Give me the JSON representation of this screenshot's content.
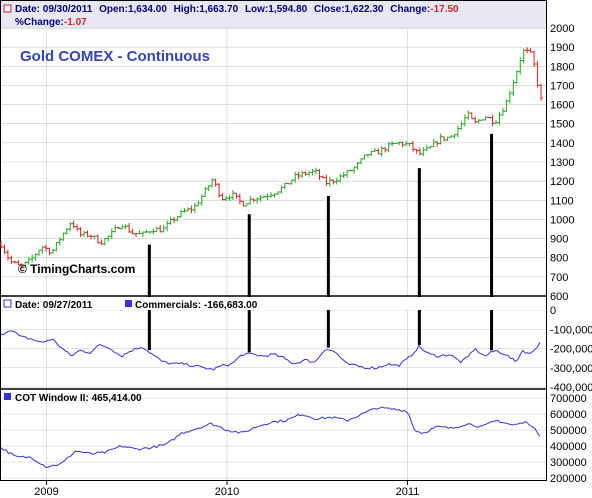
{
  "header": {
    "date_label": "Date: 09/30/2011",
    "open_label": "Open:",
    "open_value": "1,634.00",
    "high_label": "High:",
    "high_value": "1,663.70",
    "low_label": "Low:",
    "low_value": "1,594.80",
    "close_label": "Close:",
    "close_value": "1,622.30",
    "change_label": "Change:",
    "change_value": "-17.50",
    "pct_change_label": "%Change:",
    "pct_change_value": "-1.07"
  },
  "colors": {
    "price_up": "#22aa22",
    "price_down": "#dd2222",
    "series_blue": "#3333dd",
    "title_blue": "#3344bb",
    "grid": "#c8c8c8",
    "header_bg": "#e8e8f4",
    "header_text": "#000080",
    "marker_line": "#000000"
  },
  "chart_data": [
    {
      "panel": "price",
      "type": "bar",
      "title": "Gold COMEX - Continuous",
      "watermark": "© TimingCharts.com",
      "ylim": [
        600,
        2000
      ],
      "yticks": [
        600,
        700,
        800,
        900,
        1000,
        1100,
        1200,
        1300,
        1400,
        1500,
        1600,
        1700,
        1800,
        1900,
        2000
      ],
      "grid": true,
      "x_anchors": [
        {
          "date": "2008-10-01",
          "close": 870
        },
        {
          "date": "2008-10-20",
          "close": 780
        },
        {
          "date": "2008-11-10",
          "close": 750
        },
        {
          "date": "2008-12-01",
          "close": 790
        },
        {
          "date": "2008-12-22",
          "close": 860
        },
        {
          "date": "2009-01-12",
          "close": 830
        },
        {
          "date": "2009-02-02",
          "close": 920
        },
        {
          "date": "2009-02-20",
          "close": 990
        },
        {
          "date": "2009-03-09",
          "close": 920
        },
        {
          "date": "2009-03-30",
          "close": 920
        },
        {
          "date": "2009-04-20",
          "close": 880
        },
        {
          "date": "2009-05-11",
          "close": 920
        },
        {
          "date": "2009-06-01",
          "close": 980
        },
        {
          "date": "2009-06-22",
          "close": 930
        },
        {
          "date": "2009-07-13",
          "close": 920
        },
        {
          "date": "2009-08-03",
          "close": 950
        },
        {
          "date": "2009-08-24",
          "close": 945
        },
        {
          "date": "2009-09-14",
          "close": 1000
        },
        {
          "date": "2009-10-05",
          "close": 1040
        },
        {
          "date": "2009-10-26",
          "close": 1060
        },
        {
          "date": "2009-11-16",
          "close": 1140
        },
        {
          "date": "2009-12-03",
          "close": 1210
        },
        {
          "date": "2009-12-21",
          "close": 1110
        },
        {
          "date": "2010-01-11",
          "close": 1130
        },
        {
          "date": "2010-02-01",
          "close": 1080
        },
        {
          "date": "2010-02-22",
          "close": 1110
        },
        {
          "date": "2010-03-15",
          "close": 1120
        },
        {
          "date": "2010-04-05",
          "close": 1140
        },
        {
          "date": "2010-04-26",
          "close": 1170
        },
        {
          "date": "2010-05-17",
          "close": 1220
        },
        {
          "date": "2010-06-07",
          "close": 1240
        },
        {
          "date": "2010-06-28",
          "close": 1250
        },
        {
          "date": "2010-07-19",
          "close": 1190
        },
        {
          "date": "2010-08-09",
          "close": 1210
        },
        {
          "date": "2010-08-30",
          "close": 1240
        },
        {
          "date": "2010-09-20",
          "close": 1280
        },
        {
          "date": "2010-10-11",
          "close": 1340
        },
        {
          "date": "2010-11-01",
          "close": 1350
        },
        {
          "date": "2010-11-22",
          "close": 1380
        },
        {
          "date": "2010-12-13",
          "close": 1400
        },
        {
          "date": "2011-01-03",
          "close": 1390
        },
        {
          "date": "2011-01-24",
          "close": 1340
        },
        {
          "date": "2011-02-14",
          "close": 1370
        },
        {
          "date": "2011-03-07",
          "close": 1420
        },
        {
          "date": "2011-03-28",
          "close": 1430
        },
        {
          "date": "2011-04-18",
          "close": 1490
        },
        {
          "date": "2011-05-02",
          "close": 1550
        },
        {
          "date": "2011-05-16",
          "close": 1500
        },
        {
          "date": "2011-06-06",
          "close": 1540
        },
        {
          "date": "2011-06-27",
          "close": 1510
        },
        {
          "date": "2011-07-18",
          "close": 1600
        },
        {
          "date": "2011-08-08",
          "close": 1760
        },
        {
          "date": "2011-08-22",
          "close": 1880
        },
        {
          "date": "2011-09-06",
          "close": 1870
        },
        {
          "date": "2011-09-16",
          "close": 1790
        },
        {
          "date": "2011-09-26",
          "close": 1630
        },
        {
          "date": "2011-09-30",
          "close": 1622.3
        }
      ]
    },
    {
      "panel": "commercials",
      "type": "line",
      "legend": "Date: 09/27/2011",
      "series": [
        {
          "name": "Commercials: -166,683.00"
        }
      ],
      "ylim": [
        -400000,
        0
      ],
      "yticks": [
        0,
        -100000,
        -200000,
        -300000,
        -400000
      ],
      "ytick_labels": [
        "0",
        "-100,000",
        "-200,000",
        "-300,000",
        "-400,000"
      ],
      "grid": true,
      "x_anchors": [
        {
          "date": "2008-10-01",
          "value": -130000
        },
        {
          "date": "2008-10-20",
          "value": -100000
        },
        {
          "date": "2008-11-10",
          "value": -140000
        },
        {
          "date": "2008-12-01",
          "value": -150000
        },
        {
          "date": "2008-12-22",
          "value": -170000
        },
        {
          "date": "2009-01-12",
          "value": -150000
        },
        {
          "date": "2009-02-02",
          "value": -200000
        },
        {
          "date": "2009-02-20",
          "value": -240000
        },
        {
          "date": "2009-03-09",
          "value": -210000
        },
        {
          "date": "2009-03-30",
          "value": -220000
        },
        {
          "date": "2009-04-20",
          "value": -180000
        },
        {
          "date": "2009-05-11",
          "value": -200000
        },
        {
          "date": "2009-06-01",
          "value": -240000
        },
        {
          "date": "2009-06-22",
          "value": -210000
        },
        {
          "date": "2009-07-13",
          "value": -190000
        },
        {
          "date": "2009-08-03",
          "value": -230000
        },
        {
          "date": "2009-08-24",
          "value": -270000
        },
        {
          "date": "2009-09-14",
          "value": -280000
        },
        {
          "date": "2009-10-05",
          "value": -280000
        },
        {
          "date": "2009-10-26",
          "value": -290000
        },
        {
          "date": "2009-11-16",
          "value": -300000
        },
        {
          "date": "2009-12-03",
          "value": -310000
        },
        {
          "date": "2009-12-21",
          "value": -290000
        },
        {
          "date": "2010-01-11",
          "value": -280000
        },
        {
          "date": "2010-02-01",
          "value": -230000
        },
        {
          "date": "2010-02-22",
          "value": -230000
        },
        {
          "date": "2010-03-15",
          "value": -240000
        },
        {
          "date": "2010-04-05",
          "value": -230000
        },
        {
          "date": "2010-04-26",
          "value": -250000
        },
        {
          "date": "2010-05-17",
          "value": -280000
        },
        {
          "date": "2010-06-07",
          "value": -260000
        },
        {
          "date": "2010-06-28",
          "value": -270000
        },
        {
          "date": "2010-07-19",
          "value": -200000
        },
        {
          "date": "2010-08-09",
          "value": -220000
        },
        {
          "date": "2010-08-30",
          "value": -280000
        },
        {
          "date": "2010-09-20",
          "value": -290000
        },
        {
          "date": "2010-10-11",
          "value": -300000
        },
        {
          "date": "2010-11-01",
          "value": -300000
        },
        {
          "date": "2010-11-22",
          "value": -280000
        },
        {
          "date": "2010-12-13",
          "value": -290000
        },
        {
          "date": "2011-01-03",
          "value": -250000
        },
        {
          "date": "2011-01-24",
          "value": -190000
        },
        {
          "date": "2011-02-14",
          "value": -230000
        },
        {
          "date": "2011-03-07",
          "value": -240000
        },
        {
          "date": "2011-03-28",
          "value": -230000
        },
        {
          "date": "2011-04-18",
          "value": -270000
        },
        {
          "date": "2011-05-02",
          "value": -250000
        },
        {
          "date": "2011-05-16",
          "value": -200000
        },
        {
          "date": "2011-06-06",
          "value": -240000
        },
        {
          "date": "2011-06-27",
          "value": -210000
        },
        {
          "date": "2011-07-18",
          "value": -230000
        },
        {
          "date": "2011-08-08",
          "value": -270000
        },
        {
          "date": "2011-08-22",
          "value": -210000
        },
        {
          "date": "2011-09-06",
          "value": -230000
        },
        {
          "date": "2011-09-16",
          "value": -200000
        },
        {
          "date": "2011-09-27",
          "value": -166683
        }
      ]
    },
    {
      "panel": "cot_window",
      "type": "line",
      "series": [
        {
          "name": "COT Window II: 465,414.00"
        }
      ],
      "ylim": [
        200000,
        700000
      ],
      "yticks": [
        200000,
        300000,
        400000,
        500000,
        600000,
        700000
      ],
      "ytick_labels": [
        "200000",
        "300000",
        "400000",
        "500000",
        "600000",
        "700000"
      ],
      "grid": true,
      "x_anchors": [
        {
          "date": "2008-10-01",
          "value": 390000
        },
        {
          "date": "2008-11-01",
          "value": 330000
        },
        {
          "date": "2008-12-01",
          "value": 330000
        },
        {
          "date": "2009-01-01",
          "value": 270000
        },
        {
          "date": "2009-02-01",
          "value": 290000
        },
        {
          "date": "2009-03-01",
          "value": 370000
        },
        {
          "date": "2009-04-01",
          "value": 350000
        },
        {
          "date": "2009-05-01",
          "value": 360000
        },
        {
          "date": "2009-06-01",
          "value": 400000
        },
        {
          "date": "2009-07-01",
          "value": 380000
        },
        {
          "date": "2009-08-01",
          "value": 390000
        },
        {
          "date": "2009-09-01",
          "value": 410000
        },
        {
          "date": "2009-10-01",
          "value": 480000
        },
        {
          "date": "2009-11-01",
          "value": 510000
        },
        {
          "date": "2009-12-01",
          "value": 540000
        },
        {
          "date": "2010-01-01",
          "value": 500000
        },
        {
          "date": "2010-02-01",
          "value": 480000
        },
        {
          "date": "2010-03-01",
          "value": 520000
        },
        {
          "date": "2010-04-01",
          "value": 550000
        },
        {
          "date": "2010-05-01",
          "value": 560000
        },
        {
          "date": "2010-06-01",
          "value": 600000
        },
        {
          "date": "2010-07-01",
          "value": 570000
        },
        {
          "date": "2010-08-01",
          "value": 580000
        },
        {
          "date": "2010-09-01",
          "value": 560000
        },
        {
          "date": "2010-10-01",
          "value": 600000
        },
        {
          "date": "2010-11-01",
          "value": 640000
        },
        {
          "date": "2010-12-01",
          "value": 630000
        },
        {
          "date": "2011-01-01",
          "value": 620000
        },
        {
          "date": "2011-01-15",
          "value": 500000
        },
        {
          "date": "2011-02-01",
          "value": 480000
        },
        {
          "date": "2011-03-01",
          "value": 520000
        },
        {
          "date": "2011-04-01",
          "value": 510000
        },
        {
          "date": "2011-05-01",
          "value": 540000
        },
        {
          "date": "2011-06-01",
          "value": 520000
        },
        {
          "date": "2011-07-01",
          "value": 560000
        },
        {
          "date": "2011-08-01",
          "value": 530000
        },
        {
          "date": "2011-09-01",
          "value": 550000
        },
        {
          "date": "2011-09-27",
          "value": 465414
        }
      ]
    },
    {
      "type": "xaxis",
      "tick_labels": [
        {
          "date": "2009-01-01",
          "label": "2009"
        },
        {
          "date": "2010-01-01",
          "label": "2010"
        },
        {
          "date": "2011-01-01",
          "label": "2011"
        }
      ],
      "xlim": [
        "2008-10-01",
        "2011-09-30"
      ],
      "marker_dates": [
        "2009-07-28",
        "2010-02-15",
        "2010-07-25",
        "2011-01-25",
        "2011-06-20"
      ]
    }
  ]
}
